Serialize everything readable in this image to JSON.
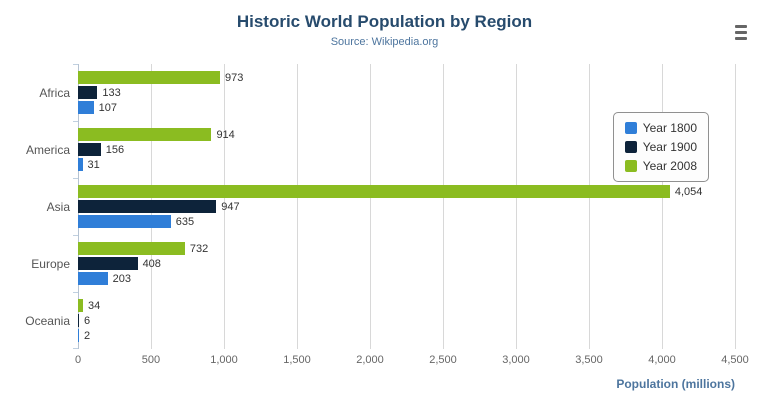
{
  "toolbar": {
    "export_menu_icon": "hamburger-menu-icon"
  },
  "chart_data": {
    "type": "bar",
    "title": "Historic World Population by Region",
    "subtitle": "Source: Wikipedia.org",
    "xlabel": "Population (millions)",
    "categories": [
      "Africa",
      "America",
      "Asia",
      "Europe",
      "Oceania"
    ],
    "series": [
      {
        "name": "Year 1800",
        "color": "#2f7ed8",
        "values": [
          107,
          31,
          635,
          203,
          2
        ],
        "labels": [
          "107",
          "31",
          "635",
          "203",
          "2"
        ]
      },
      {
        "name": "Year 1900",
        "color": "#0d233a",
        "values": [
          133,
          156,
          947,
          408,
          6
        ],
        "labels": [
          "133",
          "156",
          "947",
          "408",
          "6"
        ]
      },
      {
        "name": "Year 2008",
        "color": "#8bbc21",
        "values": [
          973,
          914,
          4054,
          732,
          34
        ],
        "labels": [
          "973",
          "914",
          "4,054",
          "732",
          "34"
        ]
      }
    ],
    "bar_order_top_to_bottom": [
      "Year 2008",
      "Year 1900",
      "Year 1800"
    ],
    "xmax": 4500,
    "xticks": [
      "0",
      "500",
      "1,000",
      "1,500",
      "2,000",
      "2,500",
      "3,000",
      "3,500",
      "4,000",
      "4,500"
    ],
    "grid": true,
    "legend_position": "right"
  }
}
